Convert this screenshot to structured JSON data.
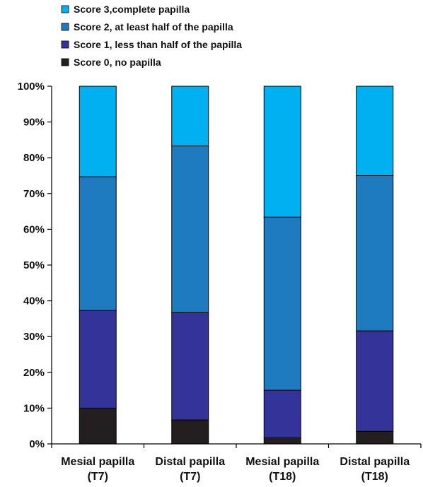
{
  "chart_data": {
    "type": "bar",
    "stacked": true,
    "percent": true,
    "categories": [
      [
        "Mesial papilla",
        "(T7)"
      ],
      [
        "Distal papilla",
        "(T7)"
      ],
      [
        "Mesial papilla",
        "(T18)"
      ],
      [
        "Distal papilla",
        "(T18)"
      ]
    ],
    "series": [
      {
        "name": "Score 0, no papilla",
        "color": "#231f20",
        "values": [
          10,
          6.7,
          1.7,
          3.5
        ]
      },
      {
        "name": "Score 1, less than half of the papilla",
        "color": "#333399",
        "values": [
          27.3,
          30,
          13.3,
          28.1
        ]
      },
      {
        "name": "Score 2, at least half of the papilla",
        "color": "#1f7bbf",
        "values": [
          37.4,
          46.6,
          48.4,
          43.4
        ]
      },
      {
        "name": "Score 3,complete papilla",
        "color": "#00b0f0",
        "values": [
          25.3,
          16.7,
          36.6,
          25
        ]
      }
    ],
    "legend_order": [
      3,
      2,
      1,
      0
    ],
    "yticks": [
      "0%",
      "10%",
      "20%",
      "30%",
      "40%",
      "50%",
      "60%",
      "70%",
      "80%",
      "90%",
      "100%"
    ],
    "ylim": [
      0,
      100
    ],
    "legend_position": "top-left",
    "grid": false
  }
}
